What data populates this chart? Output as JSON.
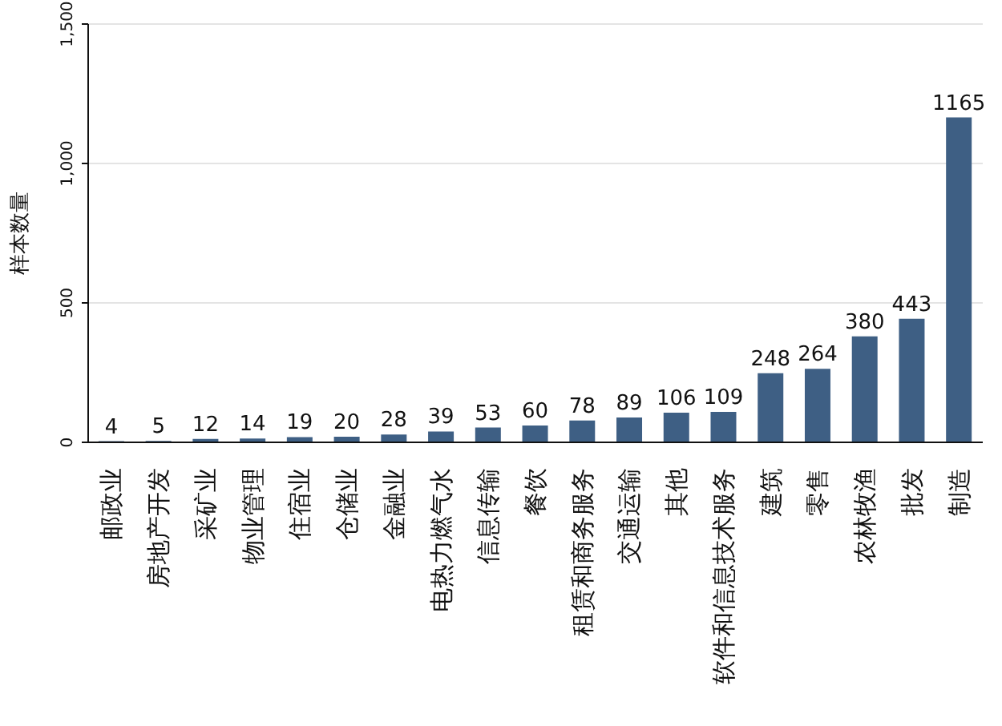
{
  "chart_data": {
    "type": "bar",
    "ylabel": "样本数量",
    "categories": [
      "邮政业",
      "房地产开发",
      "采矿业",
      "物业管理",
      "住宿业",
      "仓储业",
      "金融业",
      "电热力燃气水",
      "信息传输",
      "餐饮",
      "租赁和商务服务",
      "交通运输",
      "其他",
      "软件和信息技术服务",
      "建筑",
      "零售",
      "农林牧渔",
      "批发",
      "制造"
    ],
    "values": [
      4,
      5,
      12,
      14,
      19,
      20,
      28,
      39,
      53,
      60,
      78,
      89,
      106,
      109,
      248,
      264,
      380,
      443,
      1165
    ],
    "color": "#3e5f84",
    "ylim": [
      0,
      1500
    ],
    "yticks": [
      0,
      500,
      {
        "value": 1000,
        "label": "1,000"
      },
      {
        "value": 1500,
        "label": "1,500"
      }
    ],
    "grid": "y",
    "data_labels": true
  }
}
